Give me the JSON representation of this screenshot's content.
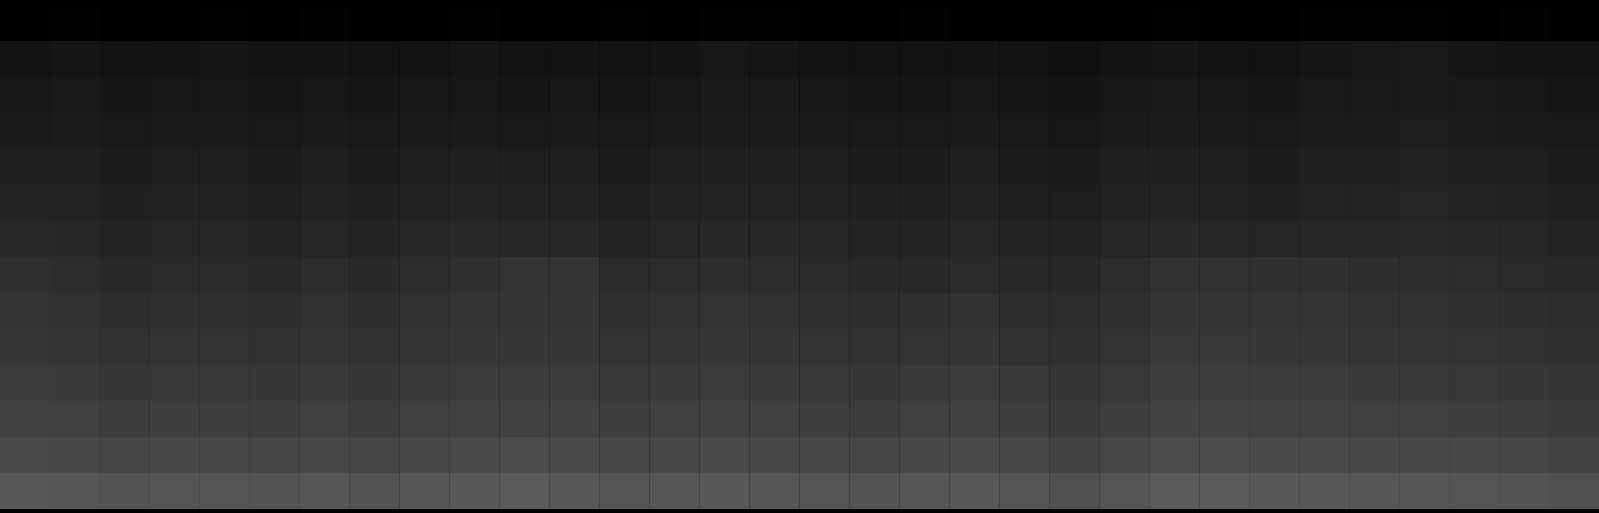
{
  "chart_data": {
    "type": "heatmap",
    "color": "#5a5a5a",
    "tick_labels": false,
    "cells": [
      [
        8,
        9,
        8,
        8,
        9,
        8,
        9,
        8,
        8,
        9,
        8,
        8,
        9,
        8,
        9,
        9,
        8,
        8,
        9,
        8,
        8,
        8,
        8,
        9,
        8,
        8,
        9,
        9,
        9,
        8,
        9,
        8
      ],
      [
        19,
        20,
        18,
        19,
        20,
        18,
        19,
        18,
        19,
        20,
        18,
        19,
        18,
        19,
        21,
        20,
        19,
        18,
        18,
        19,
        18,
        17,
        19,
        20,
        19,
        18,
        20,
        21,
        22,
        20,
        19,
        18
      ],
      [
        21,
        22,
        20,
        21,
        21,
        20,
        21,
        20,
        21,
        21,
        20,
        21,
        20,
        21,
        22,
        22,
        21,
        20,
        20,
        21,
        20,
        19,
        21,
        22,
        21,
        20,
        22,
        22,
        23,
        22,
        21,
        20
      ],
      [
        23,
        24,
        22,
        23,
        23,
        22,
        23,
        22,
        23,
        23,
        22,
        23,
        22,
        23,
        24,
        24,
        23,
        22,
        22,
        23,
        22,
        21,
        23,
        24,
        23,
        22,
        24,
        24,
        25,
        24,
        23,
        22
      ],
      [
        26,
        26,
        24,
        25,
        25,
        24,
        25,
        24,
        25,
        26,
        25,
        25,
        24,
        25,
        26,
        26,
        25,
        24,
        24,
        25,
        24,
        23,
        25,
        26,
        25,
        24,
        26,
        26,
        27,
        26,
        25,
        24
      ],
      [
        28,
        28,
        26,
        27,
        27,
        26,
        27,
        26,
        27,
        28,
        27,
        27,
        26,
        27,
        28,
        28,
        27,
        26,
        26,
        27,
        26,
        25,
        27,
        28,
        27,
        26,
        28,
        28,
        29,
        28,
        27,
        26
      ],
      [
        31,
        30,
        28,
        29,
        29,
        28,
        29,
        28,
        30,
        31,
        30,
        30,
        28,
        29,
        30,
        30,
        29,
        28,
        28,
        29,
        28,
        27,
        29,
        31,
        30,
        29,
        30,
        30,
        31,
        30,
        29,
        28
      ],
      [
        35,
        33,
        31,
        32,
        32,
        31,
        33,
        31,
        33,
        35,
        37,
        37,
        32,
        33,
        34,
        33,
        32,
        31,
        31,
        32,
        31,
        30,
        33,
        36,
        36,
        35,
        35,
        34,
        34,
        33,
        32,
        31
      ],
      [
        37,
        36,
        34,
        35,
        35,
        34,
        36,
        34,
        36,
        37,
        38,
        38,
        35,
        36,
        37,
        36,
        35,
        34,
        35,
        36,
        34,
        33,
        35,
        38,
        38,
        37,
        37,
        36,
        36,
        35,
        34,
        33
      ],
      [
        39,
        38,
        36,
        37,
        37,
        36,
        38,
        36,
        38,
        39,
        39,
        39,
        37,
        38,
        39,
        38,
        37,
        36,
        37,
        38,
        36,
        35,
        37,
        40,
        40,
        39,
        39,
        38,
        38,
        37,
        36,
        35
      ],
      [
        42,
        41,
        39,
        40,
        40,
        39,
        41,
        39,
        41,
        42,
        42,
        42,
        40,
        41,
        42,
        41,
        40,
        39,
        41,
        42,
        40,
        38,
        40,
        43,
        43,
        42,
        42,
        41,
        41,
        40,
        39,
        38
      ],
      [
        45,
        44,
        42,
        43,
        43,
        42,
        44,
        42,
        44,
        45,
        45,
        45,
        43,
        44,
        45,
        44,
        43,
        42,
        44,
        45,
        43,
        41,
        43,
        46,
        46,
        45,
        45,
        44,
        44,
        43,
        42,
        41
      ],
      [
        50,
        49,
        47,
        48,
        48,
        47,
        49,
        47,
        49,
        50,
        51,
        50,
        48,
        49,
        50,
        49,
        48,
        47,
        49,
        50,
        48,
        46,
        48,
        51,
        51,
        50,
        50,
        49,
        49,
        48,
        47,
        46
      ],
      [
        58,
        57,
        55,
        56,
        56,
        55,
        57,
        55,
        57,
        58,
        59,
        58,
        56,
        57,
        58,
        57,
        56,
        55,
        57,
        58,
        56,
        54,
        56,
        59,
        59,
        58,
        58,
        57,
        57,
        56,
        55,
        54
      ]
    ]
  }
}
